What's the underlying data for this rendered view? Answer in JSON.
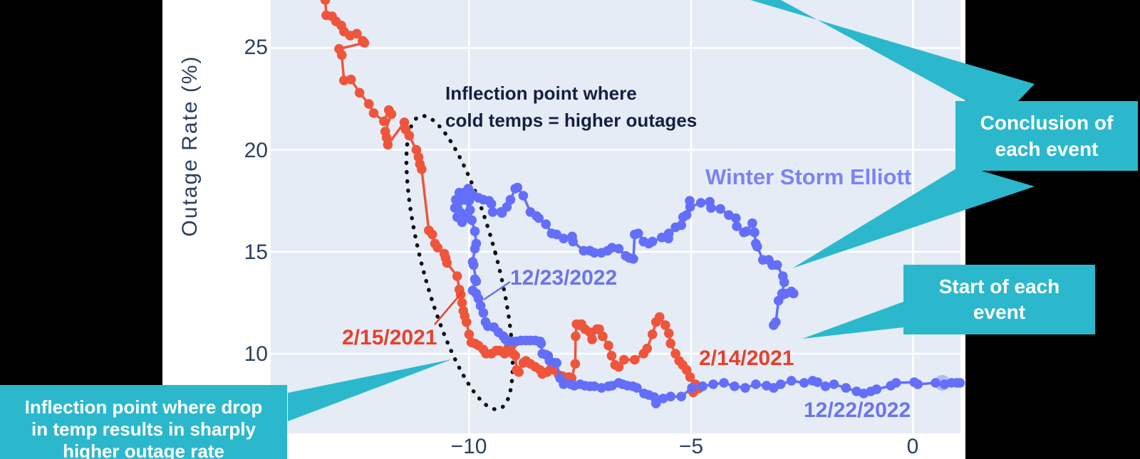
{
  "figure": {
    "y_axis_title": "Outage Rate (%)",
    "y_tick_labels": [
      "25",
      "20",
      "15",
      "10"
    ],
    "x_tick_labels": [
      "−10",
      "−5",
      "0"
    ]
  },
  "colors": {
    "plot_background": "#e5ecf6",
    "gridline": "#ffffff",
    "red_series": "#ef553b",
    "blue_series": "#636efa",
    "teal_callout": "#2bb8cd",
    "tick_text": "#2a3f5f",
    "annotation_text": "#14203f"
  },
  "annotations": {
    "storm_title": "Winter Storm Elliott",
    "inflection_line1": "Inflection point where",
    "inflection_line2": "cold temps = higher outages",
    "red_mid_date": "2/15/2021",
    "red_start_date": "2/14/2021",
    "blue_end_date": "12/23/2022",
    "blue_start_date": "12/22/2022"
  },
  "callouts": {
    "conclusion_line1": "Conclusion of",
    "conclusion_line2": "each event",
    "start_line1": "Start of each",
    "start_line2": "event",
    "inflection_line1": "Inflection point where drop",
    "inflection_line2": "in temp results in sharply",
    "inflection_line3": "higher outage rate"
  },
  "chart_data": {
    "type": "scatter",
    "title": "",
    "xlabel": "",
    "ylabel": "Outage Rate (%)",
    "x_ticks": [
      -10,
      -5,
      0
    ],
    "y_ticks": [
      10,
      15,
      20,
      25
    ],
    "xlim": [
      -14.47,
      1.07
    ],
    "ylim": [
      6.09,
      27.35
    ],
    "grid": true,
    "legend_position": "none",
    "series": [
      {
        "id": "red_2021_event",
        "start_label": "2/14/2021",
        "mid_label": "2/15/2021",
        "color": "#ef553b",
        "mode": "lines+markers",
        "points": [
          [
            -13.24,
            27.35
          ],
          [
            -13.22,
            26.6
          ],
          [
            -13.09,
            26.55
          ],
          [
            -13.0,
            26.3
          ],
          [
            -12.88,
            26.1
          ],
          [
            -12.82,
            25.8
          ],
          [
            -12.68,
            25.6
          ],
          [
            -12.53,
            25.7
          ],
          [
            -12.4,
            25.35
          ],
          [
            -12.36,
            25.25
          ],
          [
            -12.93,
            24.95
          ],
          [
            -12.87,
            24.65
          ],
          [
            -12.82,
            23.4
          ],
          [
            -12.66,
            23.45
          ],
          [
            -12.47,
            22.8
          ],
          [
            -12.26,
            22.25
          ],
          [
            -12.15,
            21.8
          ],
          [
            -11.92,
            21.4
          ],
          [
            -11.81,
            21.95
          ],
          [
            -11.75,
            21.75
          ],
          [
            -11.89,
            20.9
          ],
          [
            -11.86,
            20.6
          ],
          [
            -11.83,
            20.25
          ],
          [
            -11.46,
            21.35
          ],
          [
            -11.43,
            21.0
          ],
          [
            -11.35,
            20.7
          ],
          [
            -11.19,
            20.0
          ],
          [
            -11.14,
            19.65
          ],
          [
            -11.11,
            19.3
          ],
          [
            -11.07,
            19.05
          ],
          [
            -10.91,
            16.05
          ],
          [
            -10.83,
            15.85
          ],
          [
            -10.77,
            15.4
          ],
          [
            -10.71,
            15.2
          ],
          [
            -10.56,
            14.9
          ],
          [
            -10.53,
            14.7
          ],
          [
            -10.5,
            14.45
          ],
          [
            -10.27,
            13.8
          ],
          [
            -10.22,
            13.15
          ],
          [
            -10.19,
            12.9
          ],
          [
            -10.16,
            12.5
          ],
          [
            -10.13,
            12.1
          ],
          [
            -10.1,
            11.85
          ],
          [
            -10.06,
            11.55
          ],
          [
            -10.0,
            10.95
          ],
          [
            -9.95,
            10.55
          ],
          [
            -9.87,
            10.5
          ],
          [
            -9.79,
            10.4
          ],
          [
            -9.68,
            10.2
          ],
          [
            -9.62,
            10.0
          ],
          [
            -9.5,
            10.0
          ],
          [
            -9.39,
            10.15
          ],
          [
            -9.31,
            10.15
          ],
          [
            -9.2,
            10.0
          ],
          [
            -9.12,
            10.3
          ],
          [
            -9.04,
            10.4
          ],
          [
            -9.01,
            10.0
          ],
          [
            -8.96,
            9.9
          ],
          [
            -8.93,
            9.2
          ],
          [
            -8.88,
            9.1
          ],
          [
            -8.78,
            9.55
          ],
          [
            -8.72,
            9.65
          ],
          [
            -8.62,
            9.5
          ],
          [
            -8.51,
            9.35
          ],
          [
            -8.4,
            9.2
          ],
          [
            -8.35,
            9.0
          ],
          [
            -8.24,
            9.1
          ],
          [
            -8.16,
            9.25
          ],
          [
            -8.08,
            9.2
          ],
          [
            -7.98,
            8.95
          ],
          [
            -7.9,
            8.9
          ],
          [
            -7.76,
            8.85
          ],
          [
            -7.69,
            8.8
          ],
          [
            -7.61,
            9.5
          ],
          [
            -7.6,
            10.85
          ],
          [
            -7.58,
            11.45
          ],
          [
            -7.52,
            11.4
          ],
          [
            -7.47,
            11.45
          ],
          [
            -7.39,
            11.2
          ],
          [
            -7.28,
            11.05
          ],
          [
            -7.23,
            10.7
          ],
          [
            -7.12,
            11.2
          ],
          [
            -7.07,
            11.2
          ],
          [
            -6.99,
            10.85
          ],
          [
            -6.86,
            10.4
          ],
          [
            -6.79,
            9.9
          ],
          [
            -6.71,
            9.45
          ],
          [
            -6.63,
            9.35
          ],
          [
            -6.51,
            9.7
          ],
          [
            -6.27,
            9.7
          ],
          [
            -6.07,
            10.0
          ],
          [
            -5.99,
            10.25
          ],
          [
            -5.87,
            10.95
          ],
          [
            -5.79,
            11.55
          ],
          [
            -5.71,
            11.8
          ],
          [
            -5.58,
            11.4
          ],
          [
            -5.5,
            11.0
          ],
          [
            -5.46,
            10.5
          ],
          [
            -5.35,
            10.0
          ],
          [
            -5.27,
            9.65
          ],
          [
            -5.19,
            9.45
          ],
          [
            -5.1,
            9.2
          ],
          [
            -5.02,
            8.85
          ],
          [
            -4.9,
            8.5
          ],
          [
            -4.98,
            8.2
          ],
          [
            -4.82,
            8.3
          ],
          [
            -4.95,
            8.1
          ]
        ]
      },
      {
        "id": "blue_elliott_event",
        "name": "Winter Storm Elliott",
        "start_label": "12/22/2022",
        "end_label": "12/23/2022",
        "color": "#636efa",
        "mode": "lines+markers",
        "start_marker": {
          "x": 0.66,
          "y": 8.57
        },
        "points": [
          [
            1.06,
            8.57
          ],
          [
            0.99,
            8.57
          ],
          [
            0.87,
            8.57
          ],
          [
            0.71,
            8.5
          ],
          [
            0.51,
            8.57
          ],
          [
            0.11,
            8.5
          ],
          [
            0.03,
            8.6
          ],
          [
            -0.38,
            8.57
          ],
          [
            -0.5,
            8.43
          ],
          [
            -0.82,
            8.25
          ],
          [
            -0.95,
            8.15
          ],
          [
            -1.11,
            8.05
          ],
          [
            -1.27,
            8.15
          ],
          [
            -1.51,
            8.32
          ],
          [
            -1.78,
            8.5
          ],
          [
            -1.97,
            8.4
          ],
          [
            -2.15,
            8.6
          ],
          [
            -2.26,
            8.67
          ],
          [
            -2.45,
            8.57
          ],
          [
            -2.74,
            8.67
          ],
          [
            -2.98,
            8.5
          ],
          [
            -3.14,
            8.32
          ],
          [
            -3.3,
            8.43
          ],
          [
            -3.54,
            8.5
          ],
          [
            -3.78,
            8.32
          ],
          [
            -4.02,
            8.4
          ],
          [
            -4.26,
            8.57
          ],
          [
            -4.5,
            8.5
          ],
          [
            -4.74,
            8.4
          ],
          [
            -4.98,
            8.32
          ],
          [
            -5.22,
            7.9
          ],
          [
            -5.46,
            7.9
          ],
          [
            -5.63,
            7.8
          ],
          [
            -5.79,
            7.56
          ],
          [
            -5.83,
            7.87
          ],
          [
            -5.95,
            7.97
          ],
          [
            -6.06,
            8.05
          ],
          [
            -6.22,
            8.32
          ],
          [
            -6.31,
            8.4
          ],
          [
            -6.43,
            8.43
          ],
          [
            -6.54,
            8.5
          ],
          [
            -6.63,
            8.57
          ],
          [
            -6.78,
            8.43
          ],
          [
            -6.86,
            8.4
          ],
          [
            -7.02,
            8.32
          ],
          [
            -7.18,
            8.4
          ],
          [
            -7.28,
            8.4
          ],
          [
            -7.39,
            8.43
          ],
          [
            -7.5,
            8.5
          ],
          [
            -7.63,
            8.43
          ],
          [
            -7.71,
            8.5
          ],
          [
            -7.87,
            8.5
          ],
          [
            -7.95,
            8.8
          ],
          [
            -8.03,
            9.55
          ],
          [
            -8.08,
            9.55
          ],
          [
            -8.19,
            9.65
          ],
          [
            -8.22,
            9.9
          ],
          [
            -8.27,
            9.95
          ],
          [
            -8.35,
            10.0
          ],
          [
            -8.38,
            10.5
          ],
          [
            -8.4,
            10.6
          ],
          [
            -8.51,
            10.65
          ],
          [
            -8.62,
            10.65
          ],
          [
            -8.72,
            10.65
          ],
          [
            -8.83,
            10.65
          ],
          [
            -8.94,
            10.6
          ],
          [
            -9.04,
            10.6
          ],
          [
            -9.12,
            10.6
          ],
          [
            -9.18,
            10.7
          ],
          [
            -9.23,
            10.85
          ],
          [
            -9.34,
            11.05
          ],
          [
            -9.44,
            11.3
          ],
          [
            -9.58,
            11.35
          ],
          [
            -9.63,
            11.55
          ],
          [
            -9.68,
            12.0
          ],
          [
            -9.74,
            12.35
          ],
          [
            -9.79,
            12.7
          ],
          [
            -9.84,
            12.95
          ],
          [
            -9.92,
            13.1
          ],
          [
            -9.87,
            13.65
          ],
          [
            -9.84,
            13.55
          ],
          [
            -9.9,
            14.35
          ],
          [
            -9.92,
            14.5
          ],
          [
            -9.87,
            15.15
          ],
          [
            -9.84,
            15.4
          ],
          [
            -9.87,
            16.0
          ],
          [
            -9.94,
            16.55
          ],
          [
            -9.98,
            17.05
          ],
          [
            -10.11,
            17.55
          ],
          [
            -10.22,
            17.9
          ],
          [
            -10.3,
            17.55
          ],
          [
            -10.26,
            17.15
          ],
          [
            -10.18,
            16.9
          ],
          [
            -10.08,
            16.65
          ],
          [
            -10.16,
            16.45
          ],
          [
            -10.27,
            16.7
          ],
          [
            -10.32,
            17.15
          ],
          [
            -10.21,
            17.5
          ],
          [
            -10.11,
            17.9
          ],
          [
            -10.02,
            18.1
          ],
          [
            -9.95,
            17.85
          ],
          [
            -10.0,
            17.5
          ],
          [
            -9.9,
            17.75
          ],
          [
            -9.79,
            17.65
          ],
          [
            -9.68,
            17.55
          ],
          [
            -9.55,
            17.5
          ],
          [
            -9.5,
            17.35
          ],
          [
            -9.47,
            16.95
          ],
          [
            -9.28,
            16.95
          ],
          [
            -9.26,
            16.9
          ],
          [
            -9.15,
            17.2
          ],
          [
            -9.07,
            17.55
          ],
          [
            -8.96,
            18.1
          ],
          [
            -8.91,
            18.15
          ],
          [
            -8.78,
            17.75
          ],
          [
            -8.62,
            16.95
          ],
          [
            -8.48,
            16.75
          ],
          [
            -8.43,
            16.65
          ],
          [
            -8.27,
            16.35
          ],
          [
            -8.14,
            15.9
          ],
          [
            -8.03,
            15.85
          ],
          [
            -7.87,
            15.65
          ],
          [
            -7.68,
            15.75
          ],
          [
            -7.66,
            15.5
          ],
          [
            -7.42,
            15.05
          ],
          [
            -7.28,
            15.05
          ],
          [
            -7.18,
            14.95
          ],
          [
            -7.02,
            14.95
          ],
          [
            -6.88,
            15.05
          ],
          [
            -6.78,
            15.2
          ],
          [
            -6.63,
            15.15
          ],
          [
            -6.47,
            14.8
          ],
          [
            -6.39,
            14.7
          ],
          [
            -6.3,
            14.65
          ],
          [
            -6.27,
            15.85
          ],
          [
            -6.19,
            15.9
          ],
          [
            -6.07,
            15.5
          ],
          [
            -5.95,
            15.4
          ],
          [
            -5.87,
            15.5
          ],
          [
            -5.66,
            15.7
          ],
          [
            -5.51,
            15.65
          ],
          [
            -5.5,
            15.9
          ],
          [
            -5.35,
            16.2
          ],
          [
            -5.22,
            16.3
          ],
          [
            -5.18,
            16.7
          ],
          [
            -5.1,
            16.8
          ],
          [
            -5.03,
            17.5
          ],
          [
            -5.02,
            17.2
          ],
          [
            -4.78,
            17.4
          ],
          [
            -4.58,
            17.45
          ],
          [
            -4.55,
            17.15
          ],
          [
            -4.34,
            17.1
          ],
          [
            -4.15,
            16.8
          ],
          [
            -3.99,
            16.65
          ],
          [
            -3.97,
            16.25
          ],
          [
            -3.81,
            15.95
          ],
          [
            -3.75,
            16.0
          ],
          [
            -3.62,
            16.4
          ],
          [
            -3.57,
            15.95
          ],
          [
            -3.54,
            15.4
          ],
          [
            -3.51,
            15.25
          ],
          [
            -3.38,
            14.6
          ],
          [
            -3.25,
            14.6
          ],
          [
            -3.17,
            14.35
          ],
          [
            -3.06,
            14.35
          ],
          [
            -2.93,
            13.8
          ],
          [
            -2.9,
            13.5
          ],
          [
            -2.95,
            12.95
          ],
          [
            -2.87,
            12.95
          ],
          [
            -2.74,
            13.05
          ],
          [
            -2.69,
            12.95
          ],
          [
            -3.03,
            12.6
          ],
          [
            -3.09,
            11.55
          ],
          [
            -3.14,
            11.4
          ]
        ]
      }
    ]
  }
}
